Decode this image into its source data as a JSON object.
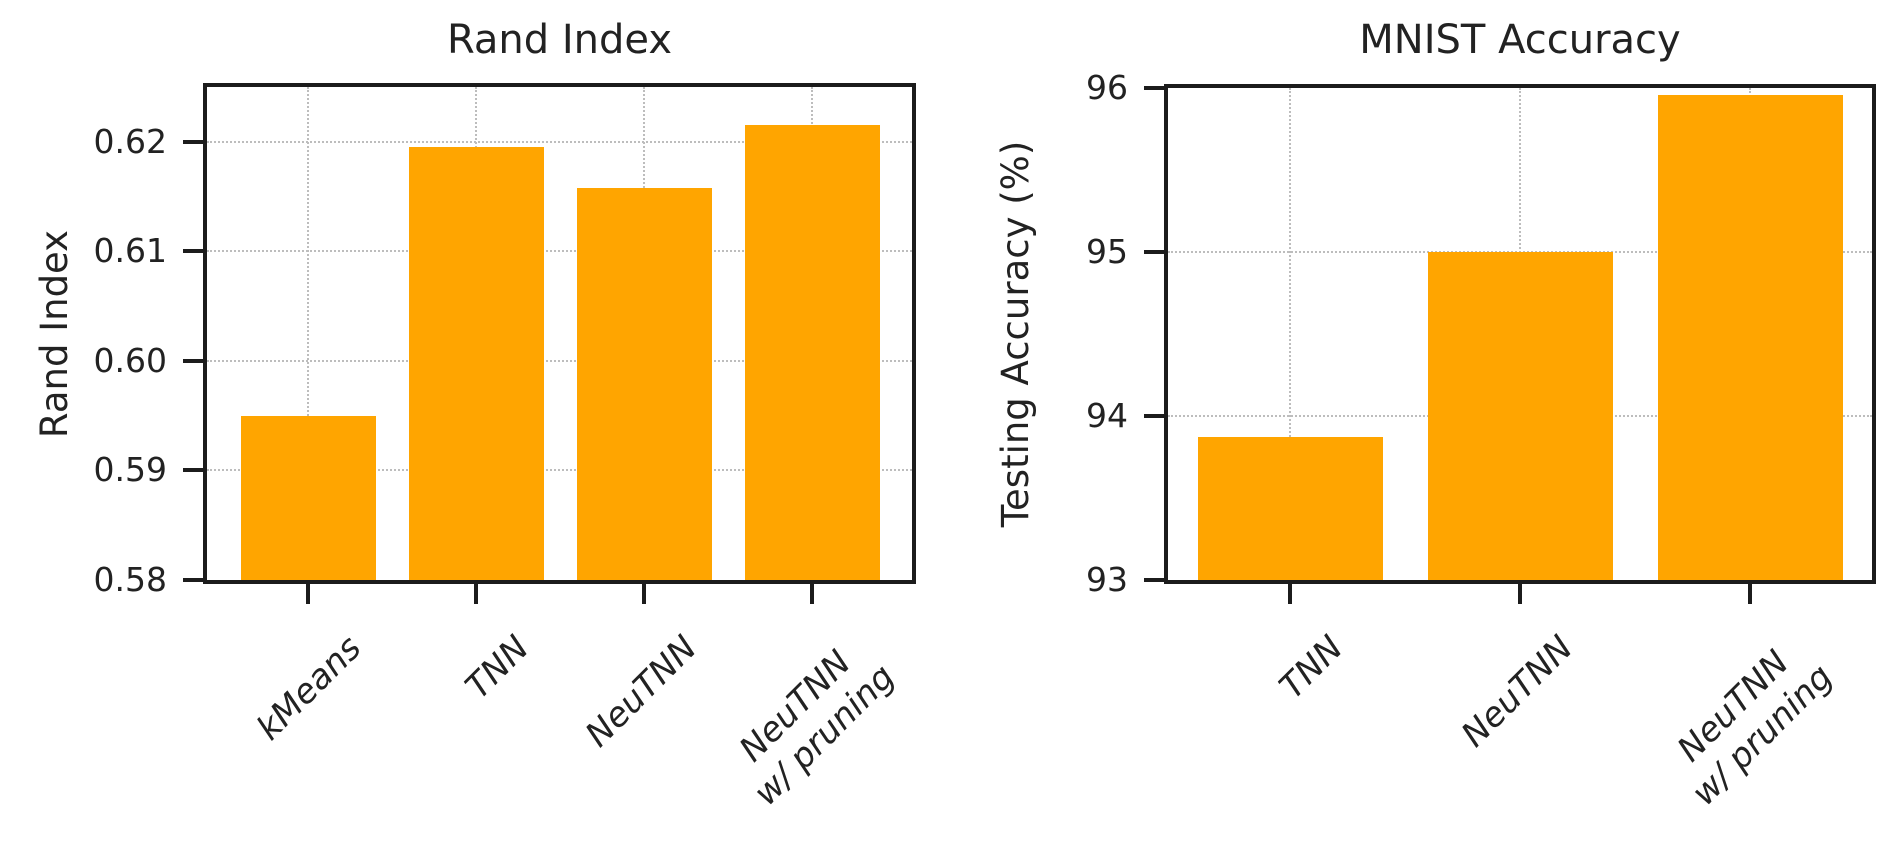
{
  "figure": {
    "background": "#ffffff",
    "bar_color": "#FFA500",
    "text_color": "#222222",
    "spine_color": "#1c1c1c",
    "grid_color": "#bdbdbd"
  },
  "chart_data": [
    {
      "type": "bar",
      "title": "Rand Index",
      "ylabel": "Rand Index",
      "xlabel": "",
      "categories": [
        "kMeans",
        "TNN",
        "NeuTNN",
        "NeuTNN\nw/ pruning"
      ],
      "values": [
        0.595,
        0.6195,
        0.6158,
        0.6215
      ],
      "ylim": [
        0.58,
        0.625
      ],
      "yticks": [
        "0.58",
        "0.59",
        "0.60",
        "0.61",
        "0.62"
      ],
      "grid": true,
      "grid_style": "dotted",
      "legend": "none",
      "bar_color": "#FFA500",
      "xtick_style": "italic, rotated 45deg"
    },
    {
      "type": "bar",
      "title": "MNIST Accuracy",
      "ylabel": "Testing Accuracy (%)",
      "xlabel": "",
      "categories": [
        "TNN",
        "NeuTNN",
        "NeuTNN\nw/ pruning"
      ],
      "values": [
        93.87,
        95.0,
        95.96
      ],
      "ylim": [
        93,
        96
      ],
      "yticks": [
        "93",
        "94",
        "95",
        "96"
      ],
      "grid": true,
      "grid_style": "dotted",
      "legend": "none",
      "bar_color": "#FFA500",
      "xtick_style": "italic, rotated 45deg"
    }
  ]
}
